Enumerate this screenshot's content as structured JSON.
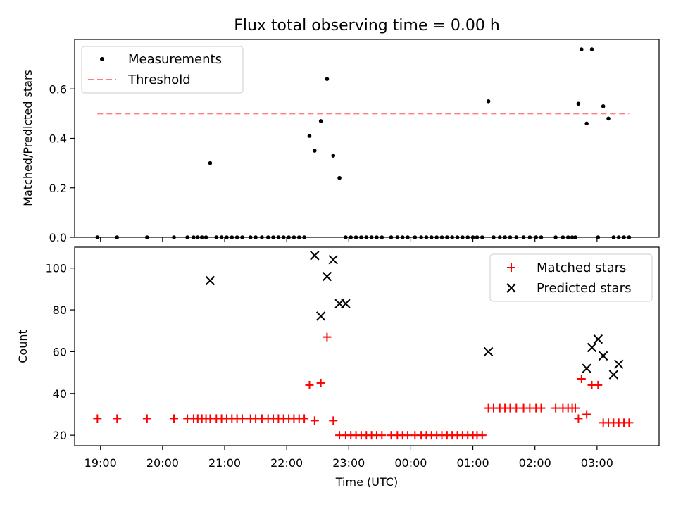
{
  "chart_data": [
    {
      "type": "scatter",
      "title": "Flux total observing time = 0.00 h",
      "xlabel": "",
      "ylabel": "Matched/Predicted stars",
      "ylim": [
        0,
        0.8
      ],
      "y_ticks": [
        0.0,
        0.2,
        0.4,
        0.6
      ],
      "y_tick_labels": [
        "0.0",
        "0.2",
        "0.4",
        "0.6"
      ],
      "legend_placement": "top-left",
      "series": [
        {
          "name": "Measurements",
          "marker": "dot",
          "color": "#000000",
          "x": [
            "18:57",
            "19:16",
            "19:45",
            "20:11",
            "20:24",
            "20:30",
            "20:34",
            "20:38",
            "20:42",
            "20:46",
            "20:52",
            "20:57",
            "21:02",
            "21:07",
            "21:12",
            "21:17",
            "21:25",
            "21:30",
            "21:36",
            "21:42",
            "21:47",
            "21:52",
            "21:57",
            "22:02",
            "22:07",
            "22:12",
            "22:17",
            "22:22",
            "22:27",
            "22:33",
            "22:39",
            "22:45",
            "22:51",
            "22:57",
            "23:02",
            "23:07",
            "23:12",
            "23:17",
            "23:22",
            "23:27",
            "23:32",
            "23:41",
            "23:47",
            "23:52",
            "23:57",
            "24:04",
            "24:10",
            "24:15",
            "24:20",
            "24:25",
            "24:30",
            "24:35",
            "24:40",
            "24:45",
            "24:50",
            "24:55",
            "25:00",
            "25:04",
            "25:09",
            "25:15",
            "25:20",
            "25:26",
            "25:31",
            "25:36",
            "25:42",
            "25:49",
            "25:55",
            "26:01",
            "26:06",
            "26:20",
            "26:27",
            "26:32",
            "26:36",
            "26:39",
            "26:42",
            "26:45",
            "26:50",
            "26:55",
            "27:01",
            "27:06",
            "27:11",
            "27:16",
            "27:21",
            "27:26",
            "27:31"
          ],
          "values": [
            0,
            0,
            0,
            0,
            0,
            0,
            0,
            0,
            0,
            0.3,
            0,
            0,
            0,
            0,
            0,
            0,
            0,
            0,
            0,
            0,
            0,
            0,
            0,
            0,
            0,
            0,
            0,
            0.41,
            0.35,
            0.47,
            0.64,
            0.33,
            0.24,
            0,
            0,
            0,
            0,
            0,
            0,
            0,
            0,
            0,
            0,
            0,
            0,
            0,
            0,
            0,
            0,
            0,
            0,
            0,
            0,
            0,
            0,
            0,
            0,
            0,
            0,
            0.55,
            0,
            0,
            0,
            0,
            0,
            0,
            0,
            0,
            0,
            0,
            0,
            0,
            0,
            0,
            0.54,
            0.76,
            0.46,
            0.76,
            0,
            0.53,
            0.48,
            0,
            0,
            0,
            0
          ]
        },
        {
          "name": "Threshold",
          "line_style": "dashed",
          "color": "#ff7f7f",
          "x": [
            "18:57",
            "27:31"
          ],
          "values": [
            0.5,
            0.5
          ]
        }
      ]
    },
    {
      "type": "scatter",
      "title": "",
      "xlabel": "Time (UTC)",
      "ylabel": "Count",
      "ylim": [
        15,
        110
      ],
      "y_ticks": [
        20,
        40,
        60,
        80,
        100
      ],
      "y_tick_labels": [
        "20",
        "40",
        "60",
        "80",
        "100"
      ],
      "xlim": [
        "18:35",
        "28:00"
      ],
      "x_ticks": [
        "19:00",
        "20:00",
        "21:00",
        "22:00",
        "23:00",
        "24:00",
        "25:00",
        "26:00",
        "27:00"
      ],
      "x_tick_labels": [
        "19:00",
        "20:00",
        "21:00",
        "22:00",
        "23:00",
        "00:00",
        "01:00",
        "02:00",
        "03:00"
      ],
      "legend_placement": "top-right",
      "series": [
        {
          "name": "Matched stars",
          "marker": "plus",
          "color": "#ff0000",
          "x": [
            "18:57",
            "19:16",
            "19:45",
            "20:11",
            "20:24",
            "20:30",
            "20:34",
            "20:38",
            "20:42",
            "20:46",
            "20:52",
            "20:57",
            "21:02",
            "21:07",
            "21:12",
            "21:17",
            "21:25",
            "21:30",
            "21:36",
            "21:42",
            "21:47",
            "21:52",
            "21:57",
            "22:02",
            "22:07",
            "22:12",
            "22:17",
            "22:22",
            "22:27",
            "22:33",
            "22:39",
            "22:45",
            "22:51",
            "22:57",
            "23:02",
            "23:07",
            "23:12",
            "23:17",
            "23:22",
            "23:27",
            "23:32",
            "23:41",
            "23:47",
            "23:52",
            "23:57",
            "24:04",
            "24:10",
            "24:15",
            "24:20",
            "24:25",
            "24:30",
            "24:35",
            "24:40",
            "24:45",
            "24:50",
            "24:55",
            "25:00",
            "25:04",
            "25:09",
            "25:15",
            "25:20",
            "25:26",
            "25:31",
            "25:36",
            "25:42",
            "25:49",
            "25:55",
            "26:01",
            "26:06",
            "26:20",
            "26:27",
            "26:32",
            "26:36",
            "26:39",
            "26:42",
            "26:45",
            "26:50",
            "26:55",
            "27:01",
            "27:06",
            "27:11",
            "27:16",
            "27:21",
            "27:26",
            "27:31"
          ],
          "values": [
            28,
            28,
            28,
            28,
            28,
            28,
            28,
            28,
            28,
            28,
            28,
            28,
            28,
            28,
            28,
            28,
            28,
            28,
            28,
            28,
            28,
            28,
            28,
            28,
            28,
            28,
            28,
            44,
            27,
            45,
            67,
            27,
            20,
            20,
            20,
            20,
            20,
            20,
            20,
            20,
            20,
            20,
            20,
            20,
            20,
            20,
            20,
            20,
            20,
            20,
            20,
            20,
            20,
            20,
            20,
            20,
            20,
            20,
            20,
            33,
            33,
            33,
            33,
            33,
            33,
            33,
            33,
            33,
            33,
            33,
            33,
            33,
            33,
            33,
            28,
            47,
            30,
            44,
            44,
            26,
            26,
            26,
            26,
            26,
            26
          ]
        },
        {
          "name": "Predicted stars",
          "marker": "x",
          "color": "#000000",
          "x": [
            "20:46",
            "22:27",
            "22:33",
            "22:39",
            "22:45",
            "22:51",
            "22:57",
            "25:15",
            "26:50",
            "26:55",
            "27:01",
            "27:06",
            "27:16",
            "27:21"
          ],
          "values": [
            94,
            106,
            77,
            96,
            104,
            83,
            83,
            60,
            52,
            62,
            66,
            58,
            49,
            54
          ]
        }
      ]
    }
  ]
}
